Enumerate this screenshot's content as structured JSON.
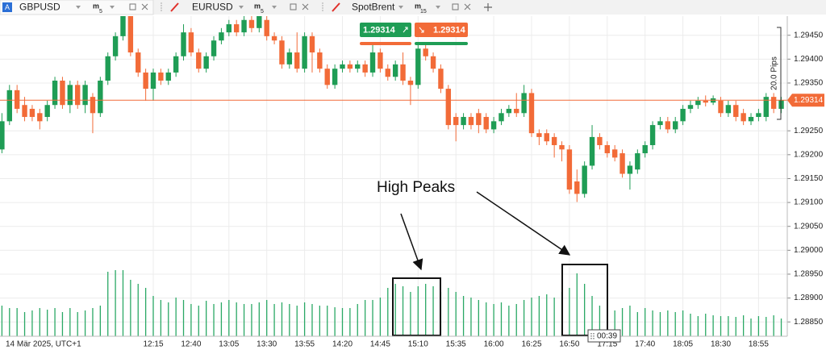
{
  "tabs": [
    {
      "icon": "A",
      "symbol": "GBPUSD",
      "timeframe_unit": "m",
      "timeframe": "5"
    },
    {
      "symbol": "EURUSD",
      "timeframe_unit": "m",
      "timeframe": "5"
    },
    {
      "symbol": "SpotBrent",
      "timeframe_unit": "m",
      "timeframe": "15"
    }
  ],
  "trade_panel": {
    "buy_price": "1.29314",
    "sell_price": "1.29314"
  },
  "range_label": "20.0 Pips",
  "timer": "00:39",
  "date_label": "14 Mär 2025, UTC+1",
  "annotation": "High Peaks",
  "chart_data": {
    "type": "candlestick",
    "categories": [
      null,
      null,
      null,
      null,
      null,
      null,
      null,
      null,
      null,
      null,
      null,
      null,
      null,
      null,
      null,
      null,
      null,
      null,
      null,
      null,
      "12:15",
      null,
      null,
      null,
      null,
      "12:40",
      null,
      null,
      null,
      null,
      "13:05",
      null,
      null,
      null,
      null,
      "13:30",
      null,
      null,
      null,
      null,
      "13:55",
      null,
      null,
      null,
      null,
      "14:20",
      null,
      null,
      null,
      null,
      "14:45",
      null,
      null,
      null,
      null,
      "15:10",
      null,
      null,
      null,
      null,
      "15:35",
      null,
      null,
      null,
      null,
      "16:00",
      null,
      null,
      null,
      null,
      "16:25",
      null,
      null,
      null,
      null,
      "16:50",
      null,
      null,
      null,
      null,
      "17:15",
      null,
      null,
      null,
      null,
      "17:40",
      null,
      null,
      null,
      null,
      "18:05",
      null,
      null,
      null,
      null,
      "18:30",
      null,
      null,
      null,
      null,
      "18:55",
      null,
      null,
      null
    ],
    "open": [
      1.29211,
      1.2927,
      1.29335,
      1.29304,
      1.29296,
      1.29287,
      1.29279,
      1.29304,
      1.29355,
      1.29304,
      1.29346,
      1.29304,
      1.29321,
      1.29287,
      1.29355,
      1.29406,
      1.29448,
      1.2949,
      1.29414,
      1.29372,
      1.29338,
      1.29372,
      1.29355,
      1.29372,
      1.29406,
      1.29456,
      1.29414,
      1.2938,
      1.29406,
      1.29439,
      1.29456,
      1.29473,
      1.29456,
      1.29482,
      1.29465,
      1.29482,
      1.29448,
      1.29439,
      1.29389,
      1.29414,
      1.2938,
      1.29448,
      1.29414,
      1.2938,
      1.29346,
      1.2938,
      1.29389,
      1.2938,
      1.29389,
      1.29372,
      1.29414,
      1.2938,
      1.29363,
      1.29389,
      1.29355,
      1.29346,
      1.29422,
      1.29406,
      1.2938,
      1.29338,
      1.29279,
      1.29262,
      1.29279,
      1.29287,
      1.29279,
      1.29253,
      1.2927,
      1.29287,
      1.29296,
      1.29287,
      1.29329,
      1.29245,
      1.29245,
      1.29237,
      1.2922,
      1.29211,
      1.29144,
      1.29118,
      1.29177,
      1.29237,
      1.2922,
      1.29211,
      1.29203,
      1.2916,
      1.29169,
      1.29203,
      1.2922,
      1.29262,
      1.2927,
      1.29253,
      1.2927,
      1.29296,
      1.29304,
      1.29313,
      1.29309,
      1.29313,
      1.29287,
      1.29304,
      1.29287,
      1.2927,
      1.29279,
      1.29279,
      1.29321,
      1.29296
    ],
    "high": [
      1.29287,
      1.29346,
      1.29346,
      1.29321,
      1.29304,
      1.29296,
      1.29313,
      1.29363,
      1.29363,
      1.29355,
      1.29355,
      1.29355,
      1.29329,
      1.29363,
      1.29414,
      1.29456,
      1.2949,
      1.2949,
      1.29422,
      1.2938,
      1.2938,
      1.2938,
      1.2938,
      1.29414,
      1.29473,
      1.29465,
      1.29422,
      1.29414,
      1.29448,
      1.29465,
      1.29482,
      1.29482,
      1.2949,
      1.2949,
      1.2949,
      1.2949,
      1.29456,
      1.29448,
      1.29422,
      1.29456,
      1.29456,
      1.29456,
      1.29422,
      1.29389,
      1.29389,
      1.29397,
      1.29397,
      1.29397,
      1.29397,
      1.29431,
      1.29422,
      1.29389,
      1.29397,
      1.29414,
      1.29363,
      1.29431,
      1.29431,
      1.29414,
      1.29389,
      1.29346,
      1.29287,
      1.29287,
      1.29287,
      1.29296,
      1.29287,
      1.29279,
      1.29296,
      1.29304,
      1.29329,
      1.29346,
      1.29338,
      1.29253,
      1.29253,
      1.29245,
      1.29228,
      1.2922,
      1.29169,
      1.29186,
      1.29262,
      1.29245,
      1.29228,
      1.2922,
      1.29211,
      1.29186,
      1.29211,
      1.29228,
      1.2927,
      1.29279,
      1.29279,
      1.29279,
      1.29304,
      1.29313,
      1.29321,
      1.29324,
      1.29324,
      1.29321,
      1.29313,
      1.29313,
      1.29296,
      1.29287,
      1.29296,
      1.29329,
      1.29329,
      1.29321
    ],
    "low": [
      1.29203,
      1.29262,
      1.29287,
      1.2927,
      1.2927,
      1.29253,
      1.2927,
      1.29296,
      1.29296,
      1.29287,
      1.29296,
      1.29287,
      1.29245,
      1.29279,
      1.29346,
      1.29397,
      1.29439,
      1.29406,
      1.29363,
      1.29313,
      1.29313,
      1.29346,
      1.29346,
      1.29363,
      1.29397,
      1.29406,
      1.29372,
      1.29372,
      1.29397,
      1.29431,
      1.29448,
      1.29448,
      1.29448,
      1.29456,
      1.29456,
      1.29439,
      1.29431,
      1.2938,
      1.2938,
      1.29372,
      1.29372,
      1.29372,
      1.29372,
      1.29338,
      1.29338,
      1.29372,
      1.29372,
      1.29372,
      1.29363,
      1.29363,
      1.29372,
      1.29355,
      1.29355,
      1.29346,
      1.29304,
      1.29338,
      1.29397,
      1.29372,
      1.29329,
      1.29253,
      1.29228,
      1.29253,
      1.29253,
      1.29245,
      1.29245,
      1.29245,
      1.29262,
      1.29279,
      1.29279,
      1.29279,
      1.29237,
      1.2922,
      1.2922,
      1.29194,
      1.29186,
      1.29118,
      1.29101,
      1.2911,
      1.29169,
      1.29211,
      1.29194,
      1.29186,
      1.29152,
      1.29127,
      1.2916,
      1.29194,
      1.29211,
      1.29253,
      1.29245,
      1.29245,
      1.29262,
      1.29287,
      1.29296,
      1.29301,
      1.29304,
      1.29279,
      1.29279,
      1.2927,
      1.29262,
      1.29262,
      1.2927,
      1.2927,
      1.29287,
      1.29287
    ],
    "close": [
      1.2927,
      1.29335,
      1.29296,
      1.29279,
      1.29279,
      1.2927,
      1.29304,
      1.29355,
      1.29304,
      1.29346,
      1.29304,
      1.29346,
      1.29287,
      1.29355,
      1.29406,
      1.29448,
      1.2949,
      1.29414,
      1.29372,
      1.29338,
      1.29372,
      1.29355,
      1.29372,
      1.29406,
      1.29456,
      1.29414,
      1.2938,
      1.29406,
      1.29439,
      1.29456,
      1.29473,
      1.29456,
      1.29482,
      1.29465,
      1.2949,
      1.29448,
      1.29439,
      1.29389,
      1.29414,
      1.2938,
      1.29448,
      1.29414,
      1.2938,
      1.29346,
      1.2938,
      1.29389,
      1.2938,
      1.29389,
      1.29372,
      1.29414,
      1.2938,
      1.29363,
      1.29389,
      1.29355,
      1.29346,
      1.29422,
      1.29406,
      1.2938,
      1.29338,
      1.29262,
      1.29262,
      1.29279,
      1.29262,
      1.29262,
      1.29253,
      1.2927,
      1.29287,
      1.29296,
      1.29287,
      1.29329,
      1.29245,
      1.29237,
      1.29228,
      1.2922,
      1.29211,
      1.29127,
      1.29118,
      1.29177,
      1.29237,
      1.2922,
      1.29203,
      1.29194,
      1.2916,
      1.29177,
      1.29203,
      1.2922,
      1.29262,
      1.2927,
      1.29253,
      1.2927,
      1.29296,
      1.29304,
      1.29313,
      1.29309,
      1.29318,
      1.29287,
      1.29304,
      1.29279,
      1.2927,
      1.29279,
      1.29287,
      1.29321,
      1.29296,
      1.29314
    ],
    "volume": [
      38,
      35,
      35,
      30,
      32,
      35,
      33,
      35,
      30,
      35,
      30,
      32,
      35,
      38,
      80,
      82,
      82,
      70,
      65,
      60,
      50,
      45,
      42,
      48,
      45,
      40,
      38,
      44,
      40,
      42,
      45,
      42,
      40,
      40,
      42,
      45,
      40,
      42,
      40,
      38,
      42,
      40,
      38,
      38,
      36,
      35,
      35,
      40,
      45,
      45,
      48,
      60,
      65,
      62,
      55,
      62,
      65,
      62,
      55,
      60,
      55,
      50,
      48,
      45,
      42,
      40,
      42,
      38,
      40,
      45,
      48,
      50,
      52,
      48,
      55,
      60,
      78,
      65,
      50,
      38,
      35,
      32,
      35,
      38,
      30,
      35,
      32,
      30,
      32,
      30,
      32,
      28,
      25,
      28,
      26,
      25,
      25,
      24,
      26,
      22,
      25,
      24,
      26,
      22
    ],
    "up_color": "#1f9d55",
    "down_color": "#f26b38",
    "volume_color": "#2aa865",
    "ylim": [
      1.2882,
      1.2949
    ],
    "yticks": [
      {
        "value": 1.2885,
        "label": "1.28850"
      },
      {
        "value": 1.289,
        "label": "1.28900"
      },
      {
        "value": 1.2895,
        "label": "1.28950"
      },
      {
        "value": 1.29,
        "label": "1.29000"
      },
      {
        "value": 1.2905,
        "label": "1.29050"
      },
      {
        "value": 1.291,
        "label": "1.29100"
      },
      {
        "value": 1.2915,
        "label": "1.29150"
      },
      {
        "value": 1.292,
        "label": "1.29200"
      },
      {
        "value": 1.2925,
        "label": "1.29250"
      },
      {
        "value": 1.2935,
        "label": "1.29350"
      },
      {
        "value": 1.294,
        "label": "1.29400"
      },
      {
        "value": 1.2945,
        "label": "1.29450"
      }
    ],
    "last_price": {
      "value": 1.29314,
      "label": "1.29314"
    },
    "grid": true
  }
}
